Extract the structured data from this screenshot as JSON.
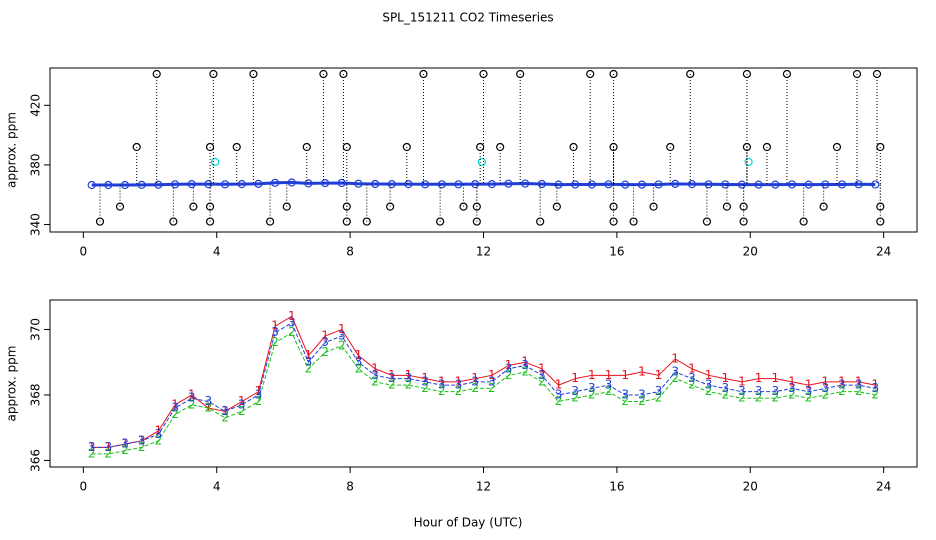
{
  "title": "SPL_151211  CO2 Timeseries",
  "xlabel": "Hour of Day (UTC)",
  "chart_data": [
    {
      "type": "scatter",
      "ylabel": "approx. ppm",
      "xlim": [
        -1,
        25
      ],
      "xticks": [
        0,
        4,
        8,
        12,
        16,
        20,
        24
      ],
      "ylim": [
        335,
        445
      ],
      "yticks": [
        340,
        380,
        420
      ],
      "series": [
        {
          "color": "#1f3fd8",
          "style": "line-points",
          "x": [
            0.25,
            0.75,
            1.25,
            1.75,
            2.25,
            2.75,
            3.25,
            3.75,
            4.25,
            4.75,
            5.25,
            5.75,
            6.25,
            6.75,
            7.25,
            7.75,
            8.25,
            8.75,
            9.25,
            9.75,
            10.25,
            10.75,
            11.25,
            11.75,
            12.25,
            12.75,
            13.25,
            13.75,
            14.25,
            14.75,
            15.25,
            15.75,
            16.25,
            16.75,
            17.25,
            17.75,
            18.25,
            18.75,
            19.25,
            19.75,
            20.25,
            20.75,
            21.25,
            21.75,
            22.25,
            22.75,
            23.25,
            23.75
          ],
          "values": [
            366.5,
            366.5,
            366.5,
            366.6,
            366.7,
            367,
            367.1,
            367.1,
            367,
            367.1,
            367.3,
            368,
            368.2,
            367.6,
            367.8,
            367.9,
            367.4,
            367.2,
            367.1,
            367.1,
            367,
            367,
            367,
            367.1,
            367.1,
            367.4,
            367.5,
            367.2,
            366.8,
            366.9,
            366.9,
            367,
            366.8,
            366.8,
            366.9,
            367.3,
            367.1,
            367,
            366.9,
            366.8,
            366.8,
            366.8,
            366.9,
            366.8,
            366.9,
            366.9,
            367,
            366.9
          ]
        },
        {
          "color": "#00d8d8",
          "style": "points",
          "x": [
            3.95,
            11.95,
            19.95
          ],
          "values": [
            382,
            382,
            382
          ]
        },
        {
          "color": "#000000",
          "style": "stems",
          "x": [
            2.2,
            3.9,
            5.1,
            7.2,
            7.8,
            10.2,
            12.0,
            13.1,
            15.2,
            15.9,
            18.2,
            19.9,
            21.1,
            23.2,
            23.8,
            1.6,
            3.8,
            4.6,
            6.7,
            7.9,
            9.7,
            11.9,
            12.5,
            14.7,
            15.9,
            17.6,
            19.9,
            20.5,
            22.6,
            23.9,
            1.1,
            3.3,
            3.8,
            6.1,
            7.9,
            9.2,
            11.4,
            11.8,
            14.2,
            15.9,
            17.1,
            19.3,
            19.8,
            22.2,
            23.9,
            0.5,
            2.7,
            3.8,
            5.6,
            7.9,
            8.5,
            10.7,
            11.8,
            13.7,
            15.9,
            16.5,
            18.7,
            19.8,
            21.6,
            23.9
          ],
          "values": [
            441,
            441,
            441,
            441,
            441,
            441,
            441,
            441,
            441,
            441,
            441,
            441,
            441,
            441,
            441,
            392,
            392,
            392,
            392,
            392,
            392,
            392,
            392,
            392,
            392,
            392,
            392,
            392,
            392,
            392,
            352,
            352,
            352,
            352,
            352,
            352,
            352,
            352,
            352,
            352,
            352,
            352,
            352,
            352,
            352,
            342,
            342,
            342,
            342,
            342,
            342,
            342,
            342,
            342,
            342,
            342,
            342,
            342,
            342,
            342
          ]
        }
      ]
    },
    {
      "type": "line",
      "ylabel": "approx. ppm",
      "xlim": [
        -1,
        25
      ],
      "xticks": [
        0,
        4,
        8,
        12,
        16,
        20,
        24
      ],
      "ylim": [
        365.8,
        370.9
      ],
      "yticks": [
        366,
        368,
        370
      ],
      "x": [
        0.25,
        0.75,
        1.25,
        1.75,
        2.25,
        2.75,
        3.25,
        3.75,
        4.25,
        4.75,
        5.25,
        5.75,
        6.25,
        6.75,
        7.25,
        7.75,
        8.25,
        8.75,
        9.25,
        9.75,
        10.25,
        10.75,
        11.25,
        11.75,
        12.25,
        12.75,
        13.25,
        13.75,
        14.25,
        14.75,
        15.25,
        15.75,
        16.25,
        16.75,
        17.25,
        17.75,
        18.25,
        18.75,
        19.25,
        19.75,
        20.25,
        20.75,
        21.25,
        21.75,
        22.25,
        22.75,
        23.25,
        23.75
      ],
      "series": [
        {
          "marker": "1",
          "color": "#e8101a",
          "values": [
            366.4,
            366.4,
            366.5,
            366.6,
            366.9,
            367.7,
            368,
            367.6,
            367.5,
            367.8,
            368.1,
            370.1,
            370.4,
            369.2,
            369.8,
            370,
            369.2,
            368.8,
            368.6,
            368.6,
            368.5,
            368.4,
            368.4,
            368.5,
            368.6,
            368.9,
            369,
            368.8,
            368.3,
            368.5,
            368.6,
            368.6,
            368.6,
            368.7,
            368.6,
            369.1,
            368.8,
            368.6,
            368.5,
            368.4,
            368.5,
            368.5,
            368.4,
            368.3,
            368.4,
            368.4,
            368.4,
            368.3
          ]
        },
        {
          "marker": "2",
          "color": "#19c019",
          "values": [
            366.2,
            366.2,
            366.3,
            366.4,
            366.6,
            367.4,
            367.7,
            367.6,
            367.3,
            367.5,
            367.8,
            369.6,
            369.9,
            368.8,
            369.3,
            369.5,
            368.8,
            368.4,
            368.3,
            368.3,
            368.2,
            368.1,
            368.1,
            368.2,
            368.2,
            368.6,
            368.7,
            368.4,
            367.8,
            367.9,
            368,
            368.1,
            367.8,
            367.8,
            367.9,
            368.5,
            368.3,
            368.1,
            368,
            367.9,
            367.9,
            367.9,
            368,
            367.9,
            368,
            368.1,
            368.1,
            368
          ]
        },
        {
          "marker": "3",
          "color": "#1f3fd8",
          "values": [
            366.4,
            366.4,
            366.5,
            366.6,
            366.8,
            367.6,
            367.9,
            367.8,
            367.5,
            367.7,
            368,
            369.9,
            370.2,
            369,
            369.6,
            369.8,
            369,
            368.6,
            368.5,
            368.5,
            368.4,
            368.3,
            368.3,
            368.4,
            368.4,
            368.8,
            368.9,
            368.6,
            368,
            368.1,
            368.2,
            368.3,
            368,
            368,
            368.1,
            368.7,
            368.5,
            368.3,
            368.2,
            368.1,
            368.1,
            368.1,
            368.2,
            368.1,
            368.2,
            368.3,
            368.3,
            368.2
          ]
        }
      ]
    }
  ]
}
